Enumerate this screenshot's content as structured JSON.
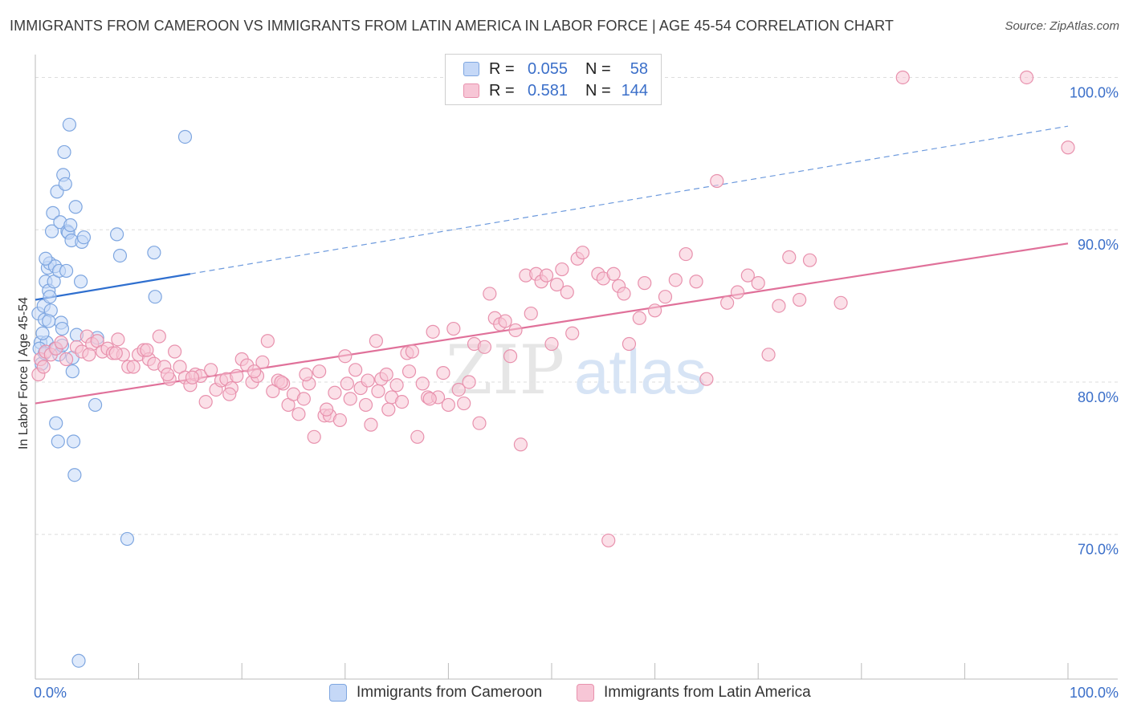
{
  "title": "IMMIGRANTS FROM CAMEROON VS IMMIGRANTS FROM LATIN AMERICA IN LABOR FORCE | AGE 45-54 CORRELATION CHART",
  "source": "Source: ZipAtlas.com",
  "watermark": {
    "zip": "ZIP",
    "atlas": "atlas"
  },
  "legend": {
    "rows": [
      {
        "r_label": "R =",
        "r_value": "0.055",
        "n_label": "N =",
        "n_value": "58"
      },
      {
        "r_label": "R =",
        "r_value": "0.581",
        "n_label": "N =",
        "n_value": "144"
      }
    ]
  },
  "colors": {
    "blue_fill": "#c5d8f7",
    "blue_stroke": "#7ea6e0",
    "blue_line": "#2f6fcf",
    "pink_fill": "#f7c6d6",
    "pink_stroke": "#e891ad",
    "pink_line": "#e0719a",
    "axis_text": "#3b6fc9",
    "grid": "#dddddd"
  },
  "chart_data": {
    "type": "scatter",
    "title": "IMMIGRANTS FROM CAMEROON VS IMMIGRANTS FROM LATIN AMERICA IN LABOR FORCE | AGE 45-54 CORRELATION CHART",
    "xlabel": "",
    "ylabel": "In Labor Force | Age 45-54",
    "xlim": [
      0,
      100
    ],
    "ylim": [
      60.5,
      101.5
    ],
    "x_tick_labels": [
      "0.0%",
      "100.0%"
    ],
    "y_ticks": [
      70,
      80,
      90,
      100
    ],
    "y_tick_labels": [
      "70.0%",
      "80.0%",
      "90.0%",
      "100.0%"
    ],
    "series": [
      {
        "name": "Immigrants from Cameroon",
        "color": "#7ea6e0",
        "trend": {
          "x": [
            0,
            15
          ],
          "y": [
            85.4,
            87.1
          ],
          "dashed_to_x": 100,
          "dashed_to_y": 96.8
        },
        "points": [
          [
            0.3,
            84.5
          ],
          [
            0.5,
            82.6
          ],
          [
            0.6,
            81.2
          ],
          [
            0.8,
            85.0
          ],
          [
            0.9,
            84.1
          ],
          [
            1.0,
            86.6
          ],
          [
            1.1,
            82.6
          ],
          [
            1.2,
            87.5
          ],
          [
            1.3,
            86.0
          ],
          [
            1.4,
            87.8
          ],
          [
            1.4,
            85.6
          ],
          [
            1.5,
            84.7
          ],
          [
            1.6,
            89.9
          ],
          [
            1.7,
            91.1
          ],
          [
            1.8,
            86.6
          ],
          [
            1.9,
            87.6
          ],
          [
            2.0,
            77.3
          ],
          [
            2.1,
            92.5
          ],
          [
            2.2,
            76.1
          ],
          [
            2.3,
            87.3
          ],
          [
            2.4,
            90.5
          ],
          [
            2.5,
            83.9
          ],
          [
            2.6,
            83.5
          ],
          [
            2.7,
            93.6
          ],
          [
            2.8,
            95.1
          ],
          [
            2.9,
            93.0
          ],
          [
            3.0,
            87.3
          ],
          [
            3.1,
            89.9
          ],
          [
            3.2,
            89.8
          ],
          [
            3.3,
            96.9
          ],
          [
            3.4,
            90.3
          ],
          [
            3.5,
            89.3
          ],
          [
            3.6,
            80.7
          ],
          [
            3.7,
            76.1
          ],
          [
            3.8,
            73.9
          ],
          [
            3.9,
            91.5
          ],
          [
            4.0,
            83.1
          ],
          [
            4.2,
            61.7
          ],
          [
            4.4,
            86.6
          ],
          [
            4.5,
            89.2
          ],
          [
            4.7,
            89.5
          ],
          [
            5.8,
            78.5
          ],
          [
            6.0,
            82.9
          ],
          [
            7.9,
            89.7
          ],
          [
            8.2,
            88.3
          ],
          [
            8.9,
            69.7
          ],
          [
            11.5,
            88.5
          ],
          [
            11.6,
            85.6
          ],
          [
            14.5,
            96.1
          ],
          [
            0.4,
            82.2
          ],
          [
            0.7,
            83.2
          ],
          [
            1.9,
            82.2
          ],
          [
            2.3,
            81.8
          ],
          [
            3.6,
            81.6
          ],
          [
            0.9,
            81.9
          ],
          [
            1.3,
            84.0
          ],
          [
            2.6,
            82.4
          ],
          [
            1.0,
            88.1
          ]
        ]
      },
      {
        "name": "Immigrants from Latin America",
        "color": "#e891ad",
        "trend": {
          "x": [
            0,
            100
          ],
          "y": [
            78.6,
            89.1
          ]
        },
        "points": [
          [
            0.3,
            80.5
          ],
          [
            0.5,
            81.5
          ],
          [
            1.0,
            82.0
          ],
          [
            1.5,
            81.8
          ],
          [
            2.0,
            82.2
          ],
          [
            3.0,
            81.5
          ],
          [
            4.0,
            82.3
          ],
          [
            4.5,
            82.0
          ],
          [
            5.0,
            83.0
          ],
          [
            5.5,
            82.5
          ],
          [
            6.0,
            82.7
          ],
          [
            6.5,
            82.0
          ],
          [
            7.0,
            82.2
          ],
          [
            7.5,
            81.9
          ],
          [
            8.0,
            82.8
          ],
          [
            8.5,
            81.8
          ],
          [
            9.0,
            81.0
          ],
          [
            9.5,
            81.0
          ],
          [
            10.0,
            81.8
          ],
          [
            10.5,
            82.1
          ],
          [
            11.0,
            81.5
          ],
          [
            11.5,
            81.2
          ],
          [
            12.0,
            83.0
          ],
          [
            12.5,
            81.0
          ],
          [
            13.0,
            80.2
          ],
          [
            13.5,
            82.0
          ],
          [
            14.0,
            81.0
          ],
          [
            14.5,
            80.3
          ],
          [
            15.0,
            79.8
          ],
          [
            15.5,
            80.5
          ],
          [
            16.0,
            80.4
          ],
          [
            16.5,
            78.7
          ],
          [
            17.0,
            80.8
          ],
          [
            17.5,
            79.5
          ],
          [
            18.0,
            80.1
          ],
          [
            18.5,
            80.2
          ],
          [
            19.0,
            79.6
          ],
          [
            19.5,
            80.4
          ],
          [
            20.0,
            81.5
          ],
          [
            20.5,
            81.1
          ],
          [
            21.0,
            80.0
          ],
          [
            21.5,
            80.4
          ],
          [
            22.0,
            81.3
          ],
          [
            22.5,
            82.7
          ],
          [
            23.0,
            79.4
          ],
          [
            23.5,
            80.1
          ],
          [
            24.0,
            79.9
          ],
          [
            24.5,
            78.5
          ],
          [
            25.0,
            79.2
          ],
          [
            25.5,
            77.9
          ],
          [
            26.0,
            78.9
          ],
          [
            26.5,
            79.9
          ],
          [
            27.0,
            76.4
          ],
          [
            27.5,
            80.7
          ],
          [
            28.0,
            77.8
          ],
          [
            28.5,
            77.8
          ],
          [
            29.0,
            79.3
          ],
          [
            29.5,
            77.5
          ],
          [
            30.0,
            81.7
          ],
          [
            30.5,
            78.9
          ],
          [
            31.0,
            80.8
          ],
          [
            31.5,
            79.6
          ],
          [
            32.0,
            78.5
          ],
          [
            32.5,
            77.2
          ],
          [
            33.0,
            82.7
          ],
          [
            33.5,
            80.2
          ],
          [
            34.0,
            80.5
          ],
          [
            34.5,
            79.0
          ],
          [
            35.0,
            79.8
          ],
          [
            35.5,
            78.7
          ],
          [
            36.0,
            81.9
          ],
          [
            36.5,
            82.0
          ],
          [
            37.0,
            76.4
          ],
          [
            37.5,
            79.9
          ],
          [
            38.0,
            79.0
          ],
          [
            38.5,
            83.3
          ],
          [
            39.0,
            79.0
          ],
          [
            39.5,
            80.6
          ],
          [
            40.0,
            78.5
          ],
          [
            40.5,
            83.5
          ],
          [
            41.0,
            79.5
          ],
          [
            41.5,
            78.6
          ],
          [
            42.0,
            80.0
          ],
          [
            42.5,
            82.5
          ],
          [
            43.0,
            77.3
          ],
          [
            43.5,
            82.3
          ],
          [
            44.0,
            85.8
          ],
          [
            44.5,
            84.2
          ],
          [
            45.0,
            83.8
          ],
          [
            45.5,
            84.0
          ],
          [
            46.0,
            81.7
          ],
          [
            46.5,
            83.4
          ],
          [
            47.0,
            75.9
          ],
          [
            47.5,
            87.0
          ],
          [
            48.0,
            84.5
          ],
          [
            48.5,
            87.1
          ],
          [
            49.0,
            86.6
          ],
          [
            49.5,
            87.0
          ],
          [
            50.0,
            82.5
          ],
          [
            50.5,
            86.4
          ],
          [
            51.0,
            87.4
          ],
          [
            51.5,
            85.9
          ],
          [
            52.0,
            83.2
          ],
          [
            52.5,
            88.1
          ],
          [
            53.0,
            88.5
          ],
          [
            54.5,
            87.1
          ],
          [
            55.0,
            86.8
          ],
          [
            55.5,
            69.6
          ],
          [
            56.0,
            87.1
          ],
          [
            56.5,
            86.3
          ],
          [
            57.0,
            85.8
          ],
          [
            57.5,
            82.5
          ],
          [
            58.5,
            84.2
          ],
          [
            59.0,
            86.5
          ],
          [
            60.0,
            84.7
          ],
          [
            61.0,
            85.6
          ],
          [
            62.0,
            86.7
          ],
          [
            63.0,
            88.4
          ],
          [
            64.0,
            86.6
          ],
          [
            65.0,
            80.2
          ],
          [
            66.0,
            93.2
          ],
          [
            67.0,
            85.2
          ],
          [
            68.0,
            85.9
          ],
          [
            69.0,
            87.0
          ],
          [
            70.0,
            86.5
          ],
          [
            71.0,
            81.8
          ],
          [
            72.0,
            85.0
          ],
          [
            73.0,
            88.2
          ],
          [
            74.0,
            85.4
          ],
          [
            75.0,
            88.0
          ],
          [
            78.0,
            85.2
          ],
          [
            84.0,
            100.0
          ],
          [
            96.0,
            100.0
          ],
          [
            100.0,
            95.4
          ],
          [
            0.8,
            81.0
          ],
          [
            2.5,
            82.6
          ],
          [
            5.2,
            81.8
          ],
          [
            7.8,
            81.9
          ],
          [
            10.8,
            82.1
          ],
          [
            12.8,
            80.5
          ],
          [
            15.2,
            80.3
          ],
          [
            18.8,
            79.2
          ],
          [
            21.2,
            80.7
          ],
          [
            23.8,
            80.0
          ],
          [
            26.2,
            80.5
          ],
          [
            28.2,
            78.2
          ],
          [
            30.2,
            79.9
          ],
          [
            32.2,
            80.1
          ],
          [
            33.2,
            79.4
          ],
          [
            34.2,
            78.2
          ],
          [
            36.2,
            80.7
          ],
          [
            38.2,
            78.9
          ]
        ]
      }
    ]
  },
  "bottom_legend": {
    "items": [
      "Immigrants from Cameroon",
      "Immigrants from Latin America"
    ]
  }
}
